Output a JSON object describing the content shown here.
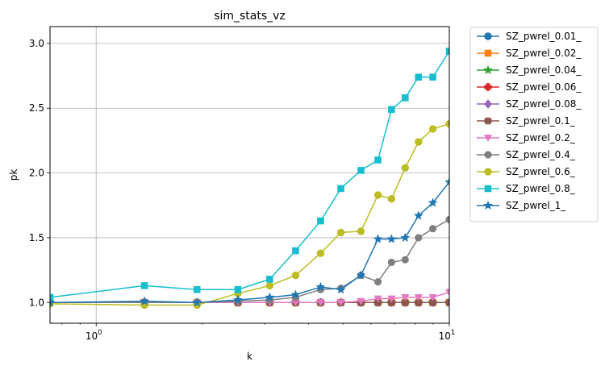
{
  "chart_data": {
    "type": "line",
    "title": "sim_stats_vz",
    "xlabel": "k",
    "ylabel": "pk",
    "xscale": "log",
    "xlim": [
      0.74,
      10
    ],
    "ylim": [
      0.84,
      3.13
    ],
    "x_ticks": [
      {
        "value": 1,
        "label": "10",
        "exp": "0"
      },
      {
        "value": 10,
        "label": "10",
        "exp": "1"
      }
    ],
    "y_ticks": [
      1.0,
      1.5,
      2.0,
      2.5,
      3.0
    ],
    "y_tick_labels": [
      "1.0",
      "1.5",
      "2.0",
      "2.5",
      "3.0"
    ],
    "grid": true,
    "legend_position": "outside-right",
    "x": [
      0.74,
      1.37,
      1.93,
      2.52,
      3.1,
      3.67,
      4.32,
      4.93,
      5.62,
      6.28,
      6.86,
      7.5,
      8.18,
      8.98,
      10
    ],
    "series": [
      {
        "name": "SZ_pwrel_0.01_",
        "color": "#1f77b4",
        "marker": "circle",
        "values": [
          1.0,
          1.0,
          1.0,
          1.0,
          1.0,
          1.0,
          1.0,
          1.0,
          1.0,
          1.0,
          1.0,
          1.0,
          1.0,
          1.0,
          1.0
        ]
      },
      {
        "name": "SZ_pwrel_0.02_",
        "color": "#ff7f0e",
        "marker": "square",
        "values": [
          1.0,
          1.0,
          1.0,
          1.0,
          1.0,
          1.0,
          1.0,
          1.0,
          1.0,
          1.0,
          1.0,
          1.0,
          1.0,
          1.0,
          1.0
        ]
      },
      {
        "name": "SZ_pwrel_0.04_",
        "color": "#2ca02c",
        "marker": "star",
        "values": [
          1.0,
          1.0,
          1.0,
          1.0,
          1.0,
          1.0,
          1.0,
          1.0,
          1.0,
          1.0,
          1.0,
          1.0,
          1.0,
          1.0,
          1.0
        ]
      },
      {
        "name": "SZ_pwrel_0.06_",
        "color": "#d62728",
        "marker": "plus",
        "values": [
          1.0,
          1.0,
          1.0,
          1.0,
          1.0,
          1.0,
          1.0,
          1.0,
          1.0,
          1.0,
          1.0,
          1.0,
          1.0,
          1.0,
          1.0
        ]
      },
      {
        "name": "SZ_pwrel_0.08_",
        "color": "#9467bd",
        "marker": "diamond",
        "values": [
          1.0,
          1.0,
          1.0,
          1.0,
          1.0,
          1.0,
          1.0,
          1.0,
          1.0,
          1.0,
          1.0,
          1.0,
          1.0,
          1.0,
          1.0
        ]
      },
      {
        "name": "SZ_pwrel_0.1_",
        "color": "#8c564b",
        "marker": "x",
        "values": [
          1.0,
          1.0,
          1.0,
          1.0,
          1.0,
          1.0,
          1.0,
          1.0,
          1.0,
          1.0,
          1.0,
          1.0,
          1.0,
          1.0,
          1.0
        ]
      },
      {
        "name": "SZ_pwrel_0.2_",
        "color": "#e377c2",
        "marker": "triangle-down",
        "values": [
          1.0,
          1.0,
          1.0,
          1.0,
          1.0,
          1.0,
          1.0,
          1.0,
          1.01,
          1.03,
          1.03,
          1.04,
          1.04,
          1.04,
          1.08
        ]
      },
      {
        "name": "SZ_pwrel_0.4_",
        "color": "#7f7f7f",
        "marker": "octagon",
        "values": [
          1.0,
          1.0,
          1.0,
          1.01,
          1.02,
          1.04,
          1.1,
          1.11,
          1.21,
          1.16,
          1.31,
          1.33,
          1.5,
          1.57,
          1.64
        ]
      },
      {
        "name": "SZ_pwrel_0.6_",
        "color": "#bcbd22",
        "marker": "circle",
        "values": [
          0.99,
          0.98,
          0.98,
          1.07,
          1.13,
          1.21,
          1.38,
          1.54,
          1.55,
          1.83,
          1.8,
          2.04,
          2.24,
          2.34,
          2.38
        ]
      },
      {
        "name": "SZ_pwrel_0.8_",
        "color": "#17becf",
        "marker": "square",
        "values": [
          1.04,
          1.13,
          1.1,
          1.1,
          1.18,
          1.4,
          1.63,
          1.88,
          2.02,
          2.1,
          2.49,
          2.58,
          2.74,
          2.74,
          2.94
        ]
      },
      {
        "name": "SZ_pwrel_1_",
        "color": "#1f77b4",
        "marker": "star",
        "values": [
          1.0,
          1.01,
          1.0,
          1.02,
          1.04,
          1.06,
          1.12,
          1.1,
          1.21,
          1.49,
          1.49,
          1.5,
          1.67,
          1.77,
          1.93
        ]
      }
    ]
  }
}
